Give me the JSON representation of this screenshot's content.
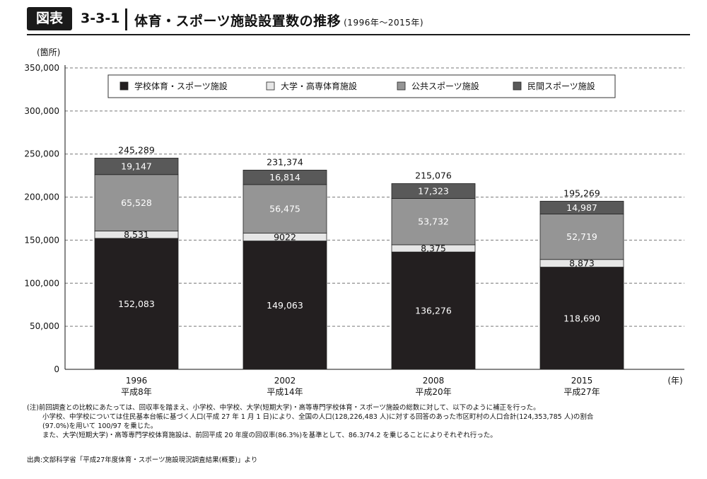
{
  "header": {
    "badge": "図表",
    "figure_number": "3-3-1",
    "title": "体育・スポーツ施設設置数の推移",
    "period": "(1996年〜2015年)"
  },
  "chart_data": {
    "type": "bar",
    "stacked": true,
    "unit_label": "(箇所)",
    "x_unit_label": "(年)",
    "categories": [
      "1996",
      "2002",
      "2008",
      "2015"
    ],
    "category_sublabels": [
      "平成8年",
      "平成14年",
      "平成20年",
      "平成27年"
    ],
    "series": [
      {
        "name": "学校体育・スポーツ施設",
        "values": [
          152083,
          149063,
          136276,
          118690
        ],
        "labels": [
          "152,083",
          "149,063",
          "136,276",
          "118,690"
        ],
        "color": "#231f20",
        "label_color": "#ffffff"
      },
      {
        "name": "大学・高専体育施設",
        "values": [
          8531,
          9022,
          8375,
          8873
        ],
        "labels": [
          "8,531",
          "9022",
          "8,375",
          "8,873"
        ],
        "color": "#e6e6e6",
        "label_color": "#111111"
      },
      {
        "name": "公共スポーツ施設",
        "values": [
          65528,
          56475,
          53732,
          52719
        ],
        "labels": [
          "65,528",
          "56,475",
          "53,732",
          "52,719"
        ],
        "color": "#959595",
        "label_color": "#ffffff"
      },
      {
        "name": "民間スポーツ施設",
        "values": [
          19147,
          16814,
          17323,
          14987
        ],
        "labels": [
          "19,147",
          "16,814",
          "17,323",
          "14,987"
        ],
        "color": "#595959",
        "label_color": "#ffffff"
      }
    ],
    "totals": [
      245289,
      231374,
      215076,
      195269
    ],
    "total_labels": [
      "245,289",
      "231,374",
      "215,076",
      "195,269"
    ],
    "ylim": [
      0,
      350000
    ],
    "yticks": [
      0,
      50000,
      100000,
      150000,
      200000,
      250000,
      300000,
      350000
    ],
    "ytick_labels": [
      "0",
      "50,000",
      "100,000",
      "150,000",
      "200,000",
      "250,000",
      "300,000",
      "350,000"
    ],
    "grid": "dashed horizontal",
    "legend_position": "top"
  },
  "notes": {
    "line1": "(注)前回調査との比較にあたっては、回収率を踏まえ、小学校、中学校、大学(短期大学)・高等専門学校体育・スポーツ施設の総数に対して、以下のように補正を行った。",
    "line2": "小学校、中学校については住民基本台帳に基づく人口(平成 27 年 1 月 1 日)により、全国の人口(128,226,483 人)に対する回答のあった市区町村の人口合計(124,353,785 人)の割合",
    "line3": "(97.0%)を用いて 100/97 を乗じた。",
    "line4": "また、大学(短期大学)・高等専門学校体育施設は、前回平成 20 年度の回収率(86.3%)を基準として、86.3/74.2 を乗じることによりそれぞれ行った。"
  },
  "source": "出典:文部科学省「平成27年度体育・スポーツ施設現況調査結果(概要)」より"
}
